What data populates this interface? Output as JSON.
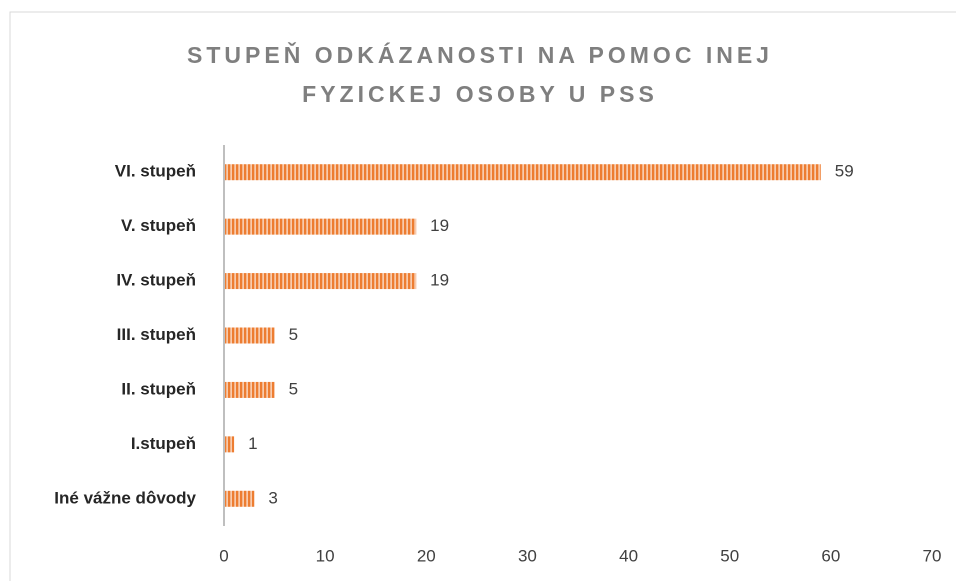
{
  "chart_data": {
    "type": "bar",
    "orientation": "horizontal",
    "title": "STUPEŇ ODKÁZANOSTI NA POMOC INEJ FYZICKEJ OSOBY U PSS",
    "categories": [
      "VI. stupeň",
      "V. stupeň",
      "IV. stupeň",
      "III. stupeň",
      "II. stupeň",
      "I.stupeň",
      "Iné vážne dôvody"
    ],
    "values": [
      59,
      19,
      19,
      5,
      5,
      1,
      3
    ],
    "color": "#ed7d31",
    "xlim": [
      0,
      70
    ],
    "xticks": [
      0,
      10,
      20,
      30,
      40,
      50,
      60,
      70
    ],
    "grid": false
  }
}
